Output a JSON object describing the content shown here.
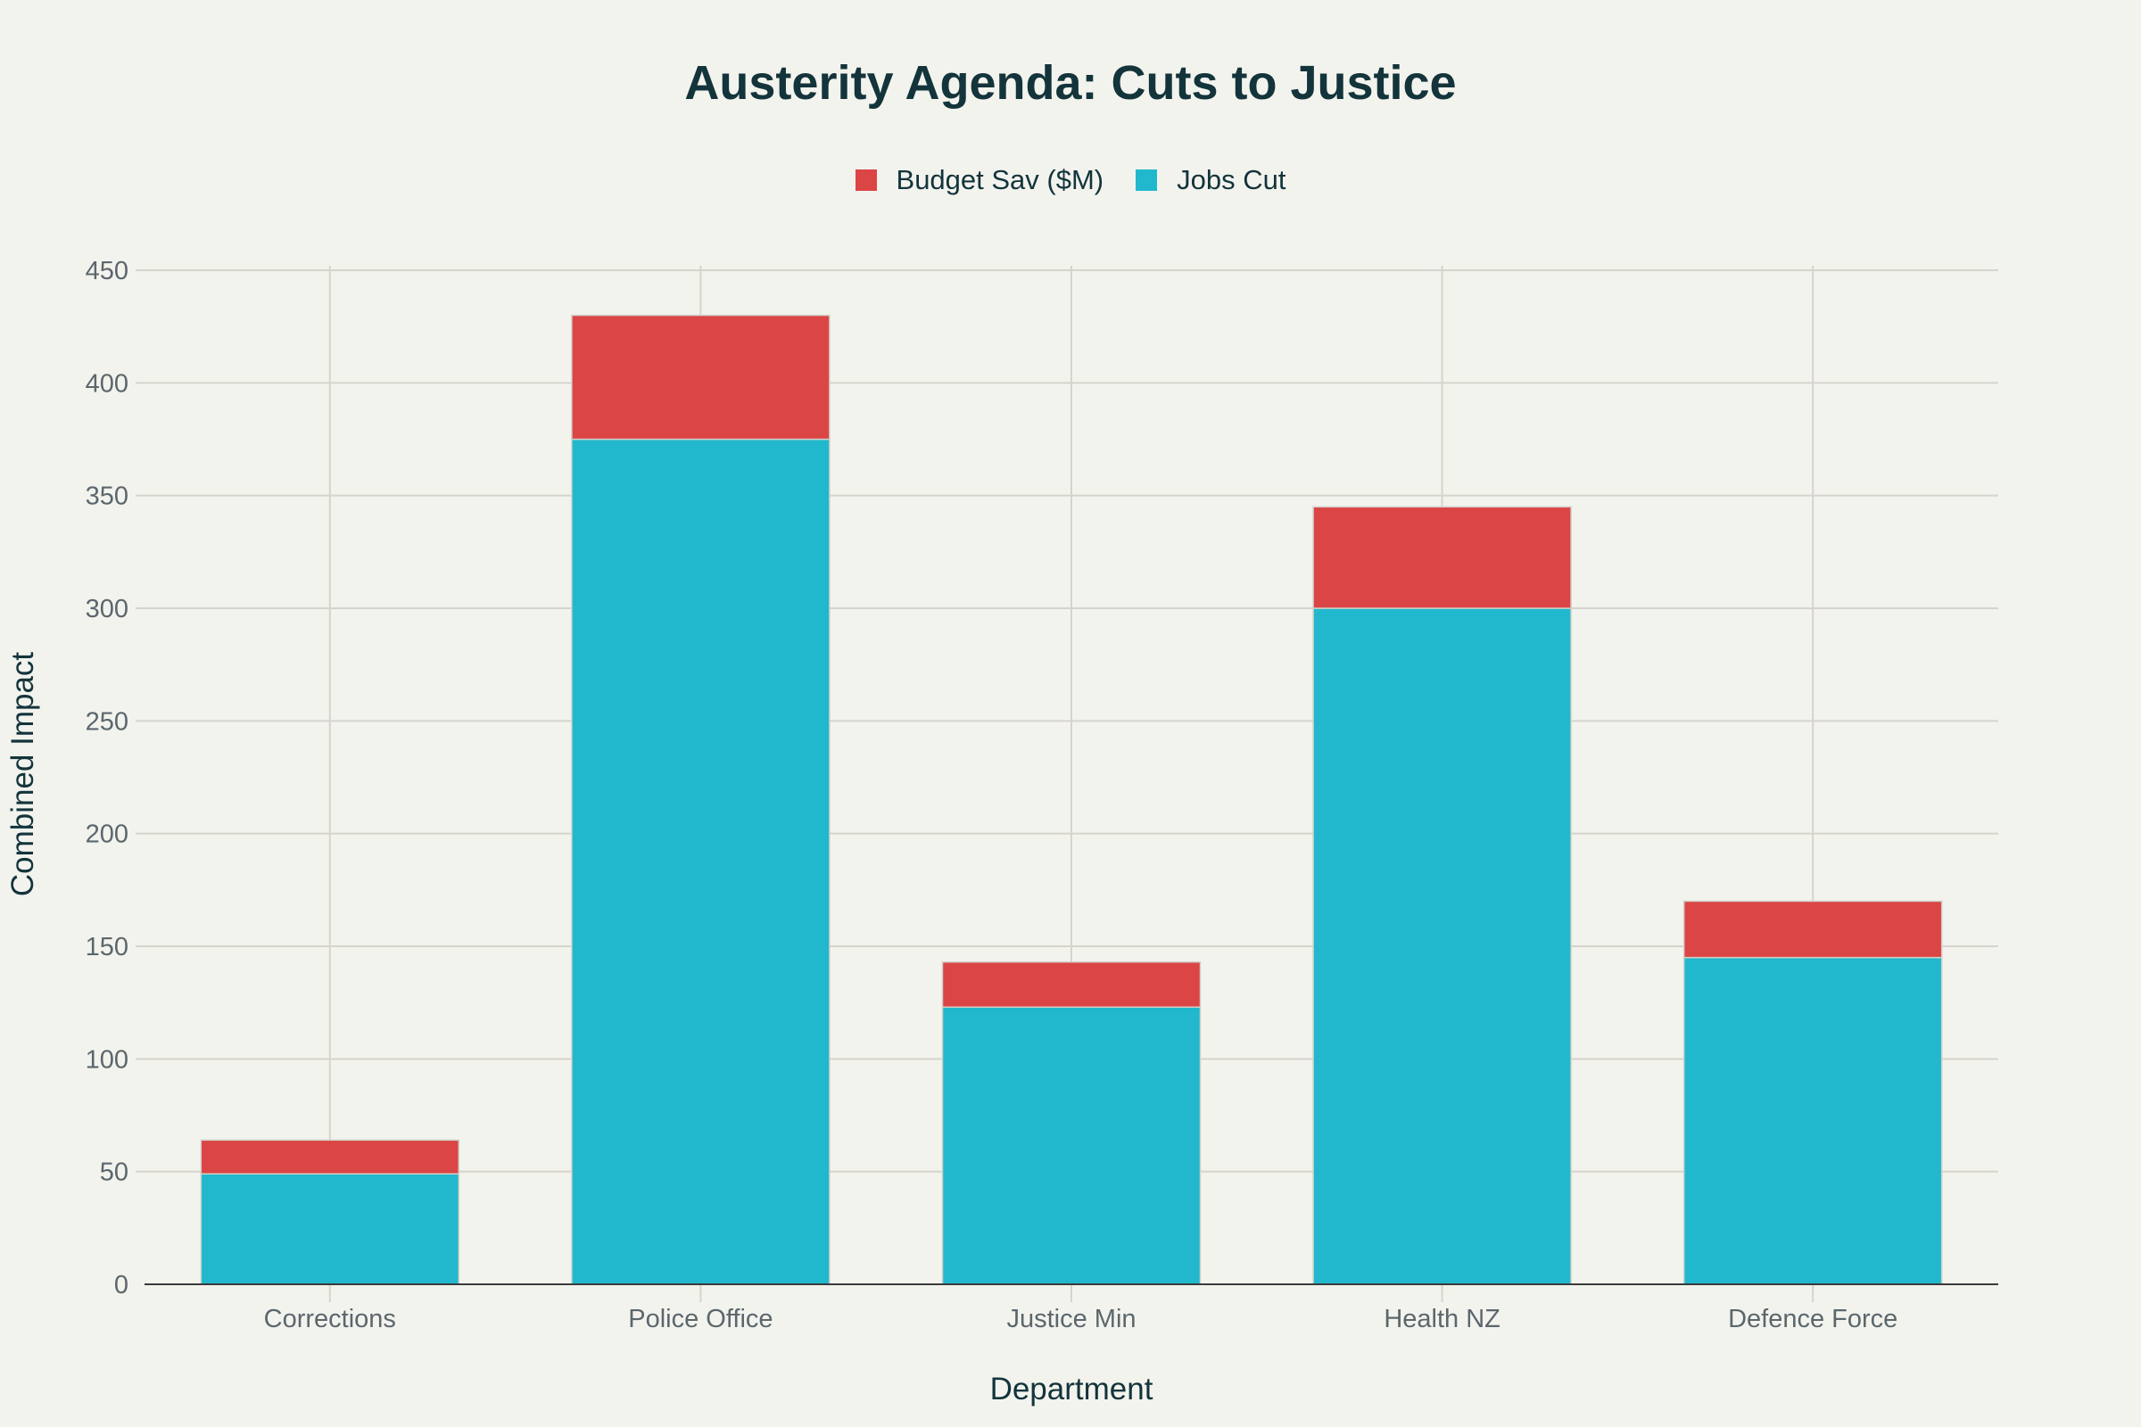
{
  "chart_data": {
    "type": "bar",
    "stacked": true,
    "title": "Austerity Agenda: Cuts to Justice",
    "xlabel": "Department",
    "ylabel": "Combined Impact",
    "categories": [
      "Corrections",
      "Police Office",
      "Justice Min",
      "Health NZ",
      "Defence Force"
    ],
    "series": [
      {
        "name": "Jobs Cut",
        "color": "#21b8cd",
        "values": [
          49,
          375,
          123,
          300,
          145
        ]
      },
      {
        "name": "Budget Sav ($M)",
        "color": "#db4545",
        "values": [
          15,
          55,
          20,
          45,
          25
        ]
      }
    ],
    "legend": [
      {
        "name": "Budget Sav ($M)",
        "color": "#db4545"
      },
      {
        "name": "Jobs Cut",
        "color": "#21b8cd"
      }
    ],
    "legend_position": "top-center",
    "ylim": [
      0,
      450
    ],
    "yticks": [
      0,
      50,
      100,
      150,
      200,
      250,
      300,
      350,
      400,
      450
    ],
    "grid": true
  }
}
